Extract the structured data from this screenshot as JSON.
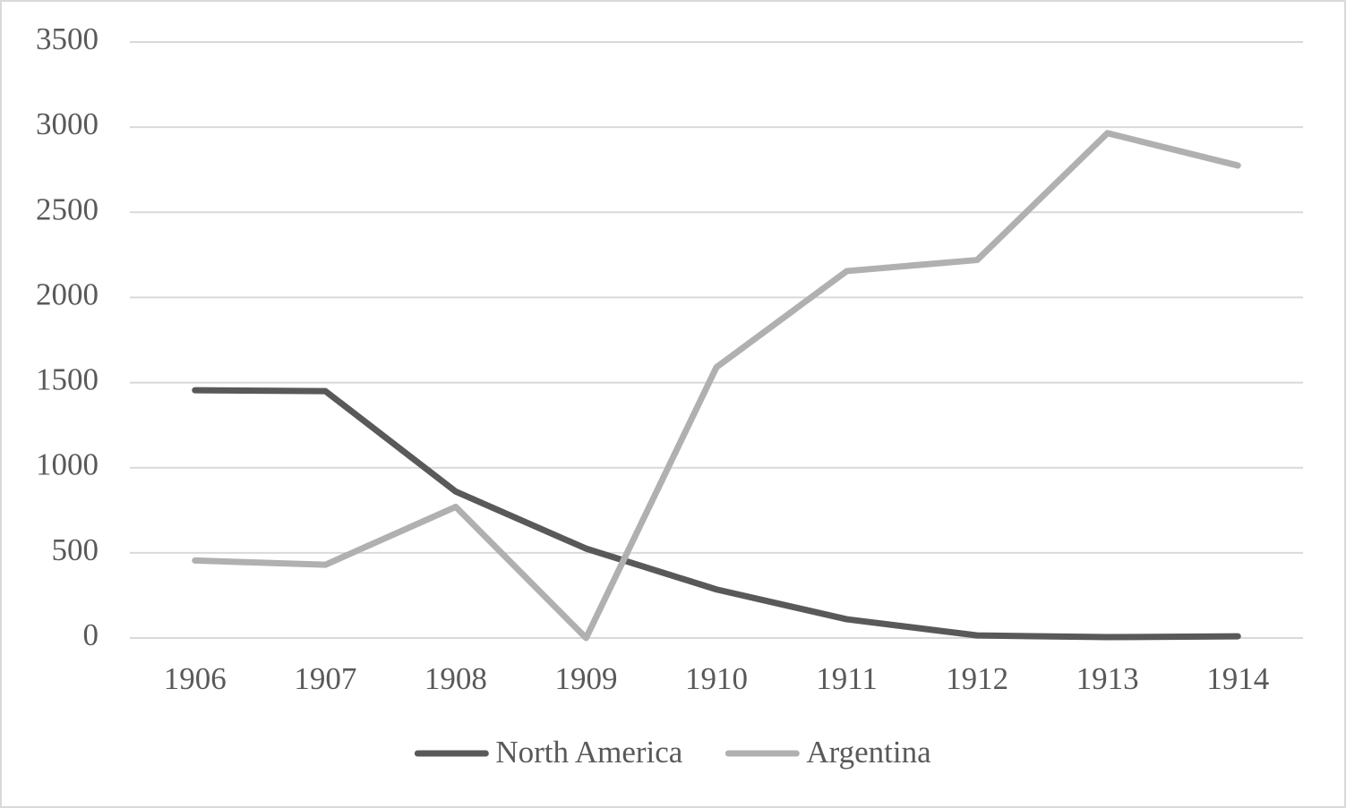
{
  "chart_data": {
    "type": "line",
    "categories": [
      "1906",
      "1907",
      "1908",
      "1909",
      "1910",
      "1911",
      "1912",
      "1913",
      "1914"
    ],
    "series": [
      {
        "name": "North America",
        "color": "#595959",
        "values": [
          1455,
          1450,
          860,
          525,
          285,
          110,
          15,
          5,
          10
        ]
      },
      {
        "name": "Argentina",
        "color": "#b0b0b0",
        "values": [
          455,
          430,
          770,
          0,
          1590,
          2155,
          2220,
          2965,
          2775
        ]
      }
    ],
    "ylim": [
      0,
      3500
    ],
    "yticks": [
      0,
      500,
      1000,
      1500,
      2000,
      2500,
      3000,
      3500
    ],
    "grid": true,
    "legend": "bottom"
  }
}
